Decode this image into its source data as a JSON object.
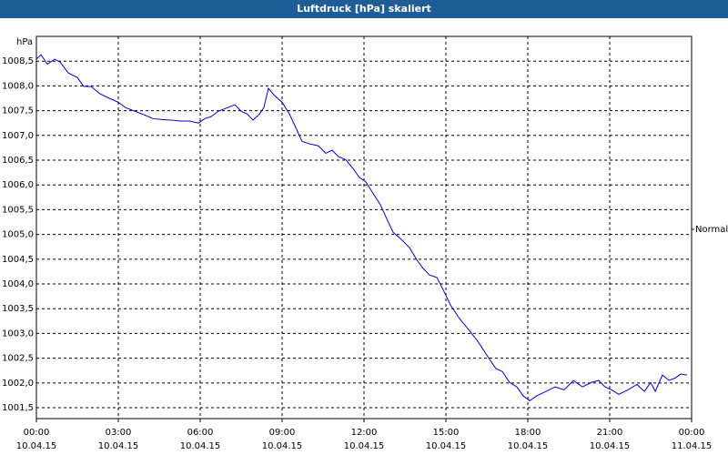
{
  "chart_data": {
    "type": "line",
    "title": "Luftdruck [hPa] skaliert",
    "y_unit": "hPa",
    "x": [
      0,
      0.17,
      0.4,
      0.67,
      0.87,
      1.17,
      1.5,
      1.73,
      2.0,
      2.33,
      2.67,
      3.0,
      3.27,
      3.6,
      3.93,
      4.27,
      4.6,
      4.93,
      5.27,
      5.6,
      5.93,
      6.17,
      6.4,
      6.67,
      7.0,
      7.27,
      7.5,
      7.73,
      7.93,
      8.17,
      8.33,
      8.5,
      8.73,
      9.0,
      9.27,
      9.5,
      9.73,
      10.0,
      10.33,
      10.6,
      10.83,
      11.07,
      11.33,
      11.6,
      11.83,
      12.07,
      12.33,
      12.6,
      12.83,
      13.07,
      13.33,
      13.67,
      13.93,
      14.17,
      14.4,
      14.67,
      14.93,
      15.17,
      15.5,
      15.83,
      16.17,
      16.5,
      16.83,
      17.07,
      17.33,
      17.6,
      17.83,
      18.07,
      18.33,
      18.67,
      19.0,
      19.33,
      19.67,
      20.0,
      20.33,
      20.6,
      20.83,
      21.07,
      21.33,
      21.67,
      22.0,
      22.27,
      22.5,
      22.67,
      22.93,
      23.17,
      23.4,
      23.6,
      23.83
    ],
    "series": [
      {
        "name": "Normal",
        "color": "#0000cc",
        "values": [
          1008.54,
          1008.63,
          1008.44,
          1008.54,
          1008.48,
          1008.26,
          1008.17,
          1007.99,
          1007.99,
          1007.84,
          1007.75,
          1007.67,
          1007.56,
          1007.49,
          1007.42,
          1007.34,
          1007.32,
          1007.31,
          1007.29,
          1007.29,
          1007.25,
          1007.34,
          1007.38,
          1007.49,
          1007.56,
          1007.62,
          1007.49,
          1007.43,
          1007.31,
          1007.43,
          1007.56,
          1007.95,
          1007.8,
          1007.67,
          1007.43,
          1007.16,
          1006.88,
          1006.83,
          1006.79,
          1006.64,
          1006.7,
          1006.57,
          1006.51,
          1006.33,
          1006.15,
          1006.06,
          1005.83,
          1005.6,
          1005.32,
          1005.04,
          1004.92,
          1004.73,
          1004.49,
          1004.31,
          1004.18,
          1004.13,
          1003.85,
          1003.57,
          1003.3,
          1003.08,
          1002.84,
          1002.56,
          1002.29,
          1002.23,
          1002.01,
          1001.92,
          1001.74,
          1001.64,
          1001.74,
          1001.83,
          1001.92,
          1001.86,
          1002.05,
          1001.92,
          1002.01,
          1002.05,
          1001.92,
          1001.86,
          1001.77,
          1001.86,
          1001.97,
          1001.83,
          1002.01,
          1001.83,
          1002.16,
          1002.05,
          1002.1,
          1002.18,
          1002.16
        ]
      }
    ],
    "xlim": [
      0,
      24
    ],
    "xticks": [
      {
        "value": 0,
        "label": "00:00"
      },
      {
        "value": 3,
        "label": "03:00"
      },
      {
        "value": 6,
        "label": "06:00"
      },
      {
        "value": 9,
        "label": "09:00"
      },
      {
        "value": 12,
        "label": "12:00"
      },
      {
        "value": 15,
        "label": "15:00"
      },
      {
        "value": 18,
        "label": "18:00"
      },
      {
        "value": 21,
        "label": "21:00"
      },
      {
        "value": 24,
        "label": "00:00"
      }
    ],
    "xtick_dates": [
      "10.04.15",
      "10.04.15",
      "10.04.15",
      "10.04.15",
      "10.04.15",
      "10.04.15",
      "10.04.15",
      "10.04.15",
      "11.04.15"
    ],
    "ylim": [
      1001.28,
      1009.0
    ],
    "yticks": [
      {
        "value": 1001.5,
        "label": "1001,5"
      },
      {
        "value": 1002,
        "label": "1002,0"
      },
      {
        "value": 1002.5,
        "label": "1002,5"
      },
      {
        "value": 1003,
        "label": "1003,0"
      },
      {
        "value": 1003.5,
        "label": "1003,5"
      },
      {
        "value": 1004,
        "label": "1004,0"
      },
      {
        "value": 1004.5,
        "label": "1004,5"
      },
      {
        "value": 1005,
        "label": "1005,0"
      },
      {
        "value": 1005.5,
        "label": "1005,5"
      },
      {
        "value": 1006,
        "label": "1006,0"
      },
      {
        "value": 1006.5,
        "label": "1006,5"
      },
      {
        "value": 1007,
        "label": "1007,0"
      },
      {
        "value": 1007.5,
        "label": "1007,5"
      },
      {
        "value": 1008,
        "label": "1008,0"
      },
      {
        "value": 1008.5,
        "label": "1008,5"
      }
    ],
    "grid": true,
    "legend": "right"
  }
}
